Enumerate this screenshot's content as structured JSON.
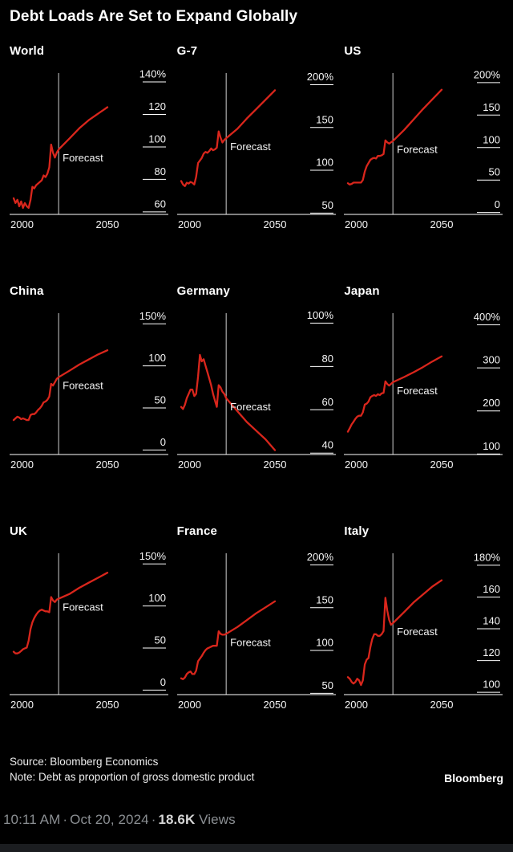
{
  "card": {
    "title": "Debt Loads Are Set to Expand Globally",
    "source": "Source: Bloomberg Economics",
    "note": "Note: Debt as proportion of gross domestic product",
    "brand": "Bloomberg"
  },
  "tweet": {
    "time": "10:11 AM",
    "separator": "·",
    "date": "Oct 20, 2024",
    "views_count": "18.6K",
    "views_label": "Views"
  },
  "colors": {
    "background": "#000000",
    "series": "#d9261c",
    "axis": "#ffffff",
    "divider": "#cfcfcf",
    "text": "#f5f5f5",
    "muted": "#8b8f93",
    "views": "#d6d6d6"
  },
  "chart_data": [
    {
      "type": "line",
      "title": "World",
      "x_ticks": [
        "2000",
        "2050"
      ],
      "y_ticks": [
        {
          "value": 140,
          "label": "140%"
        },
        {
          "value": 120,
          "label": "120"
        },
        {
          "value": 100,
          "label": "100"
        },
        {
          "value": 80,
          "label": "80"
        },
        {
          "value": 60,
          "label": "60"
        }
      ],
      "ylim": [
        54,
        142
      ],
      "forecast_x": 2024,
      "forecast_label": "Forecast",
      "x": [
        2000,
        2001,
        2002,
        2003,
        2004,
        2005,
        2006,
        2007,
        2008,
        2009,
        2010,
        2011,
        2012,
        2013,
        2014,
        2015,
        2016,
        2017,
        2018,
        2019,
        2020,
        2021,
        2022,
        2023,
        2024,
        2030,
        2035,
        2040,
        2045,
        2050
      ],
      "y": [
        64,
        61,
        63,
        59,
        62,
        58,
        61,
        59,
        58,
        63,
        71,
        70,
        72,
        73,
        74,
        75,
        78,
        77,
        79,
        83,
        97,
        92,
        89,
        92,
        94,
        101,
        107,
        112,
        116,
        120
      ]
    },
    {
      "type": "line",
      "title": "G-7",
      "x_ticks": [
        "2000",
        "2050"
      ],
      "y_ticks": [
        {
          "value": 200,
          "label": "200%"
        },
        {
          "value": 150,
          "label": "150"
        },
        {
          "value": 100,
          "label": "100"
        },
        {
          "value": 50,
          "label": "50"
        }
      ],
      "ylim": [
        40,
        207
      ],
      "forecast_x": 2024,
      "forecast_label": "Forecast",
      "x": [
        2000,
        2001,
        2002,
        2003,
        2004,
        2005,
        2006,
        2007,
        2008,
        2009,
        2010,
        2011,
        2012,
        2013,
        2014,
        2015,
        2016,
        2017,
        2018,
        2019,
        2020,
        2021,
        2022,
        2023,
        2024,
        2030,
        2035,
        2040,
        2045,
        2050
      ],
      "y": [
        79,
        75,
        73,
        77,
        76,
        78,
        77,
        75,
        84,
        100,
        103,
        106,
        111,
        113,
        112,
        114,
        117,
        115,
        116,
        118,
        137,
        130,
        124,
        127,
        129,
        140,
        152,
        163,
        174,
        185
      ]
    },
    {
      "type": "line",
      "title": "US",
      "x_ticks": [
        "2000",
        "2050"
      ],
      "y_ticks": [
        {
          "value": 200,
          "label": "200%"
        },
        {
          "value": 150,
          "label": "150"
        },
        {
          "value": 100,
          "label": "100"
        },
        {
          "value": 50,
          "label": "50"
        },
        {
          "value": 0,
          "label": "0"
        }
      ],
      "ylim": [
        -14,
        206
      ],
      "forecast_x": 2024,
      "forecast_label": "Forecast",
      "x": [
        2000,
        2001,
        2002,
        2003,
        2004,
        2005,
        2006,
        2007,
        2008,
        2009,
        2010,
        2011,
        2012,
        2013,
        2014,
        2015,
        2016,
        2017,
        2018,
        2019,
        2020,
        2021,
        2022,
        2023,
        2024,
        2030,
        2035,
        2040,
        2045,
        2050
      ],
      "y": [
        34,
        32,
        33,
        35,
        35,
        35,
        35,
        35,
        39,
        52,
        60,
        65,
        70,
        72,
        73,
        72,
        76,
        76,
        77,
        79,
        100,
        97,
        95,
        97,
        99,
        116,
        132,
        148,
        163,
        178
      ]
    },
    {
      "type": "line",
      "title": "China",
      "x_ticks": [
        "2000",
        "2050"
      ],
      "y_ticks": [
        {
          "value": 150,
          "label": "150%"
        },
        {
          "value": 100,
          "label": "100"
        },
        {
          "value": 50,
          "label": "50"
        },
        {
          "value": 0,
          "label": "0"
        }
      ],
      "ylim": [
        -14,
        156
      ],
      "forecast_x": 2024,
      "forecast_label": "Forecast",
      "x": [
        2000,
        2001,
        2002,
        2003,
        2004,
        2005,
        2006,
        2007,
        2008,
        2009,
        2010,
        2011,
        2012,
        2013,
        2014,
        2015,
        2016,
        2017,
        2018,
        2019,
        2020,
        2021,
        2022,
        2023,
        2024,
        2030,
        2035,
        2040,
        2045,
        2050
      ],
      "y": [
        27,
        29,
        31,
        30,
        28,
        29,
        28,
        27,
        27,
        33,
        34,
        34,
        36,
        39,
        41,
        44,
        48,
        49,
        51,
        55,
        70,
        68,
        72,
        76,
        78,
        86,
        93,
        99,
        105,
        110
      ]
    },
    {
      "type": "line",
      "title": "Germany",
      "x_ticks": [
        "2000",
        "2050"
      ],
      "y_ticks": [
        {
          "value": 100,
          "label": "100%"
        },
        {
          "value": 80,
          "label": "80"
        },
        {
          "value": 60,
          "label": "60"
        },
        {
          "value": 40,
          "label": "40"
        }
      ],
      "ylim": [
        36,
        102
      ],
      "forecast_x": 2024,
      "forecast_label": "Forecast",
      "x": [
        2000,
        2001,
        2002,
        2003,
        2004,
        2005,
        2006,
        2007,
        2008,
        2009,
        2010,
        2011,
        2012,
        2013,
        2014,
        2015,
        2016,
        2017,
        2018,
        2019,
        2020,
        2021,
        2022,
        2023,
        2024,
        2030,
        2035,
        2040,
        2045,
        2050
      ],
      "y": [
        58,
        57,
        59,
        62,
        64,
        66,
        66,
        63,
        64,
        72,
        82,
        79,
        80,
        77,
        74,
        71,
        68,
        64,
        61,
        58,
        68,
        67,
        65,
        64,
        62,
        56,
        51,
        47,
        43,
        38
      ]
    },
    {
      "type": "line",
      "title": "Japan",
      "x_ticks": [
        "2000",
        "2050"
      ],
      "y_ticks": [
        {
          "value": 400,
          "label": "400%"
        },
        {
          "value": 300,
          "label": "300"
        },
        {
          "value": 200,
          "label": "200"
        },
        {
          "value": 100,
          "label": "100"
        }
      ],
      "ylim": [
        82,
        414
      ],
      "forecast_x": 2024,
      "forecast_label": "Forecast",
      "x": [
        2000,
        2001,
        2002,
        2003,
        2004,
        2005,
        2006,
        2007,
        2008,
        2009,
        2010,
        2011,
        2012,
        2013,
        2014,
        2015,
        2016,
        2017,
        2018,
        2019,
        2020,
        2021,
        2022,
        2023,
        2024,
        2030,
        2035,
        2040,
        2045,
        2050
      ],
      "y": [
        135,
        143,
        152,
        158,
        165,
        170,
        172,
        172,
        180,
        198,
        200,
        205,
        215,
        218,
        220,
        218,
        222,
        220,
        224,
        225,
        252,
        246,
        242,
        246,
        250,
        262,
        273,
        285,
        298,
        310
      ]
    },
    {
      "type": "line",
      "title": "UK",
      "x_ticks": [
        "2000",
        "2050"
      ],
      "y_ticks": [
        {
          "value": 150,
          "label": "150%"
        },
        {
          "value": 100,
          "label": "100"
        },
        {
          "value": 50,
          "label": "50"
        },
        {
          "value": 0,
          "label": "0"
        }
      ],
      "ylim": [
        -14,
        156
      ],
      "forecast_x": 2024,
      "forecast_label": "Forecast",
      "x": [
        2000,
        2001,
        2002,
        2003,
        2004,
        2005,
        2006,
        2007,
        2008,
        2009,
        2010,
        2011,
        2012,
        2013,
        2014,
        2015,
        2016,
        2017,
        2018,
        2019,
        2020,
        2021,
        2022,
        2023,
        2024,
        2030,
        2035,
        2040,
        2045,
        2050
      ],
      "y": [
        37,
        35,
        35,
        36,
        38,
        40,
        41,
        42,
        50,
        64,
        72,
        77,
        81,
        84,
        86,
        87,
        86,
        85,
        85,
        84,
        102,
        98,
        96,
        99,
        100,
        106,
        113,
        119,
        125,
        131
      ]
    },
    {
      "type": "line",
      "title": "France",
      "x_ticks": [
        "2000",
        "2050"
      ],
      "y_ticks": [
        {
          "value": 200,
          "label": "200%"
        },
        {
          "value": 150,
          "label": "150"
        },
        {
          "value": 100,
          "label": "100"
        },
        {
          "value": 50,
          "label": "50"
        }
      ],
      "ylim": [
        40,
        207
      ],
      "forecast_x": 2024,
      "forecast_label": "Forecast",
      "x": [
        2000,
        2001,
        2002,
        2003,
        2004,
        2005,
        2006,
        2007,
        2008,
        2009,
        2010,
        2011,
        2012,
        2013,
        2014,
        2015,
        2016,
        2017,
        2018,
        2019,
        2020,
        2021,
        2022,
        2023,
        2024,
        2030,
        2035,
        2040,
        2045,
        2050
      ],
      "y": [
        59,
        58,
        60,
        64,
        66,
        67,
        64,
        64,
        68,
        79,
        82,
        85,
        89,
        92,
        94,
        95,
        96,
        97,
        97,
        97,
        114,
        111,
        110,
        110,
        111,
        119,
        127,
        135,
        142,
        149
      ]
    },
    {
      "type": "line",
      "title": "Italy",
      "x_ticks": [
        "2000",
        "2050"
      ],
      "y_ticks": [
        {
          "value": 180,
          "label": "180%"
        },
        {
          "value": 160,
          "label": "160"
        },
        {
          "value": 140,
          "label": "140"
        },
        {
          "value": 120,
          "label": "120"
        },
        {
          "value": 100,
          "label": "100"
        }
      ],
      "ylim": [
        94,
        184
      ],
      "forecast_x": 2024,
      "forecast_label": "Forecast",
      "x": [
        2000,
        2001,
        2002,
        2003,
        2004,
        2005,
        2006,
        2007,
        2008,
        2009,
        2010,
        2011,
        2012,
        2013,
        2014,
        2015,
        2016,
        2017,
        2018,
        2019,
        2020,
        2021,
        2022,
        2023,
        2024,
        2030,
        2035,
        2040,
        2045,
        2050
      ],
      "y": [
        105,
        104,
        102,
        101,
        102,
        104,
        103,
        100,
        103,
        113,
        116,
        117,
        124,
        129,
        132,
        132,
        131,
        131,
        132,
        134,
        155,
        147,
        141,
        138,
        139,
        146,
        152,
        157,
        162,
        166
      ]
    }
  ]
}
